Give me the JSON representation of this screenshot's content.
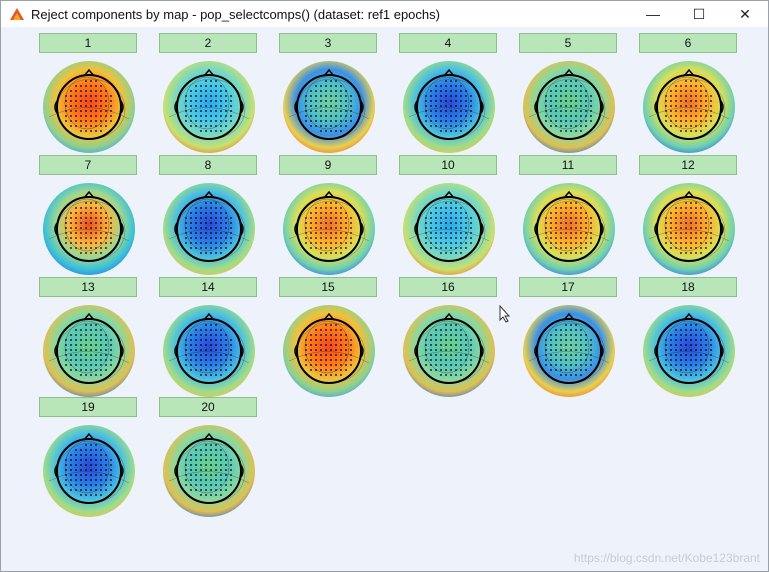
{
  "window": {
    "title": "Reject components by map - pop_selectcomps() (dataset: ref1 epochs)",
    "minimize_glyph": "—",
    "maximize_glyph": "☐",
    "close_glyph": "✕"
  },
  "components": [
    {
      "label": "1",
      "scheme": "red"
    },
    {
      "label": "2",
      "scheme": "cyan"
    },
    {
      "label": "3",
      "scheme": "green-blue"
    },
    {
      "label": "4",
      "scheme": "blue"
    },
    {
      "label": "5",
      "scheme": "green"
    },
    {
      "label": "6",
      "scheme": "orange"
    },
    {
      "label": "7",
      "scheme": "redleft"
    },
    {
      "label": "8",
      "scheme": "blue"
    },
    {
      "label": "9",
      "scheme": "orange"
    },
    {
      "label": "10",
      "scheme": "cyan"
    },
    {
      "label": "11",
      "scheme": "orange"
    },
    {
      "label": "12",
      "scheme": "orange"
    },
    {
      "label": "13",
      "scheme": "green"
    },
    {
      "label": "14",
      "scheme": "blue"
    },
    {
      "label": "15",
      "scheme": "red"
    },
    {
      "label": "16",
      "scheme": "green"
    },
    {
      "label": "17",
      "scheme": "green-blue"
    },
    {
      "label": "18",
      "scheme": "blue"
    },
    {
      "label": "19",
      "scheme": "blue"
    },
    {
      "label": "20",
      "scheme": "green"
    }
  ],
  "watermark": "https://blog.csdn.net/Kobe123brant",
  "colors": {
    "button_bg": "#b8e6b8",
    "client_bg": "#eef3fb"
  }
}
